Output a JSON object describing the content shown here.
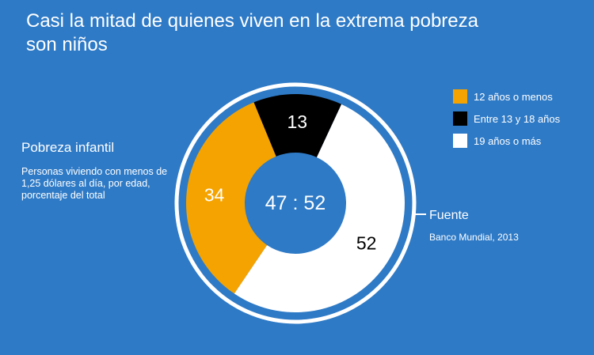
{
  "title": "Casi la mitad de quienes viven en la extrema pobreza son niños",
  "left_panel": {
    "heading": "Pobreza infantil",
    "description": "Personas viviendo con menos de 1,25 dólares al día, por edad, porcentaje del total"
  },
  "source": {
    "heading": "Fuente",
    "text": "Banco Mundial, 2013"
  },
  "colors": {
    "background": "#2e7ac6",
    "ring": "#ffffff"
  },
  "chart_data": {
    "type": "pie",
    "variant": "donut",
    "title": "Casi la mitad de quienes viven en la extrema pobreza son niños",
    "center_label": "47 : 52",
    "slices": [
      {
        "name": "12 años o menos",
        "value": 34,
        "label": "34",
        "color": "#f5a300",
        "label_color": "#ffffff"
      },
      {
        "name": "Entre 13 y 18 años",
        "value": 13,
        "label": "13",
        "color": "#000000",
        "label_color": "#ffffff"
      },
      {
        "name": "19 años o más",
        "value": 52,
        "label": "52",
        "color": "#ffffff",
        "label_color": "#000000"
      }
    ],
    "legend": [
      {
        "label": "12 años o menos",
        "color": "#f5a300"
      },
      {
        "label": "Entre 13 y 18 años",
        "color": "#000000"
      },
      {
        "label": "19 años o más",
        "color": "#ffffff"
      }
    ],
    "legend_position": "top-right"
  }
}
